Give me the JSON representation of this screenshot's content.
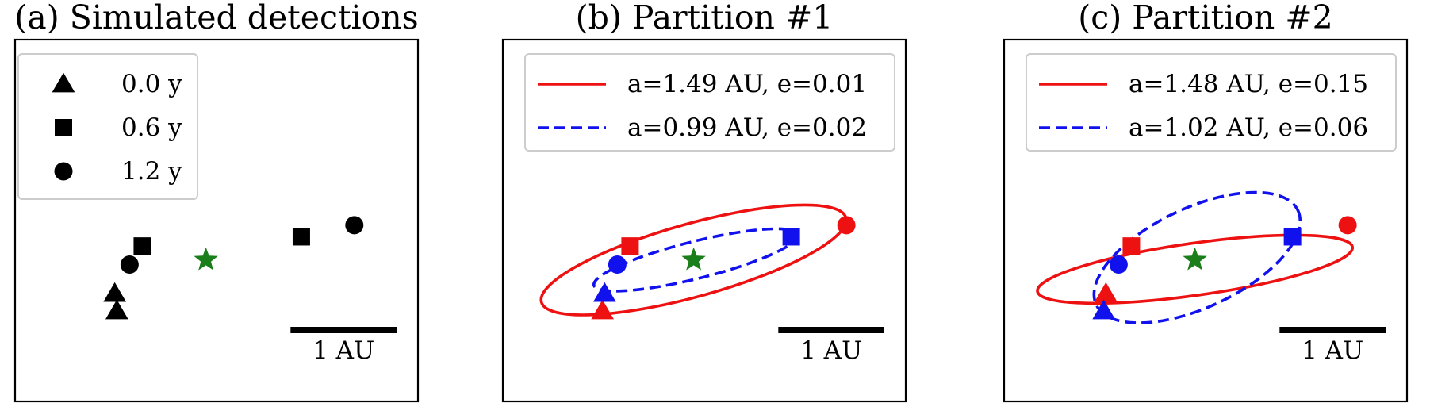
{
  "chart_data": [
    {
      "type": "scatter",
      "title": "(a) Simulated detections",
      "legend": {
        "placement": "top-left",
        "entries": [
          {
            "marker": "triangle",
            "label": "0.0 y"
          },
          {
            "marker": "square",
            "label": "0.6 y"
          },
          {
            "marker": "circle",
            "label": "1.2 y"
          }
        ]
      },
      "scalebar": {
        "label": "1 AU",
        "length": 1.0
      },
      "star": {
        "x": 0.0,
        "y": 0.0,
        "color": "#1a7f1a"
      },
      "series": [
        {
          "color": "#000000",
          "points": [
            {
              "x": -0.86,
              "y": -0.29,
              "marker": "triangle"
            },
            {
              "x": -0.6,
              "y": 0.12,
              "marker": "square"
            },
            {
              "x": -0.72,
              "y": -0.04,
              "marker": "circle"
            },
            {
              "x": -0.84,
              "y": -0.44,
              "marker": "triangle"
            },
            {
              "x": 0.9,
              "y": 0.2,
              "marker": "square"
            },
            {
              "x": 1.4,
              "y": 0.3,
              "marker": "circle"
            }
          ]
        }
      ],
      "xlim": [
        -1.8,
        2.0
      ],
      "ylim": [
        -1.22,
        1.9
      ],
      "grid": false
    },
    {
      "type": "scatter",
      "title": "(b) Partition #1",
      "legend": {
        "placement": "top-center",
        "entries": [
          {
            "style": "solid",
            "color": "#ee1111",
            "label": "a=1.49 AU, e=0.01"
          },
          {
            "style": "dashed",
            "color": "#1111ee",
            "label": "a=0.99 AU, e=0.02"
          }
        ]
      },
      "scalebar": {
        "label": "1 AU",
        "length": 1.0
      },
      "star": {
        "x": 0.0,
        "y": 0.0,
        "color": "#1a7f1a"
      },
      "orbits": [
        {
          "color": "#ee1111",
          "style": "solid",
          "cx": 0.0,
          "cy": 0.0,
          "rx": 1.49,
          "ry": 0.315,
          "tilt_deg": 15.5
        },
        {
          "color": "#1111ee",
          "style": "dashed",
          "cx": 0.02,
          "cy": 0.0,
          "rx": 0.99,
          "ry": 0.16,
          "tilt_deg": 14.0
        }
      ],
      "series": [
        {
          "color": "#ee1111",
          "points": [
            {
              "x": -0.86,
              "y": -0.44,
              "marker": "triangle"
            },
            {
              "x": -0.6,
              "y": 0.12,
              "marker": "square"
            },
            {
              "x": 1.44,
              "y": 0.3,
              "marker": "circle"
            }
          ]
        },
        {
          "color": "#1111ee",
          "points": [
            {
              "x": -0.84,
              "y": -0.29,
              "marker": "triangle"
            },
            {
              "x": 0.92,
              "y": 0.2,
              "marker": "square"
            },
            {
              "x": -0.72,
              "y": -0.04,
              "marker": "circle"
            }
          ]
        }
      ],
      "xlim": [
        -1.8,
        2.0
      ],
      "ylim": [
        -1.22,
        1.9
      ],
      "grid": false
    },
    {
      "type": "scatter",
      "title": "(c) Partition #2",
      "legend": {
        "placement": "top-center",
        "entries": [
          {
            "style": "solid",
            "color": "#ee1111",
            "label": "a=1.48 AU, e=0.15"
          },
          {
            "style": "dashed",
            "color": "#1111ee",
            "label": "a=1.02 AU, e=0.06"
          }
        ]
      },
      "scalebar": {
        "label": "1 AU",
        "length": 1.0
      },
      "star": {
        "x": 0.0,
        "y": 0.0,
        "color": "#1a7f1a"
      },
      "orbits": [
        {
          "color": "#ee1111",
          "style": "solid",
          "cx": 0.0,
          "cy": -0.08,
          "rx": 1.5,
          "ry": 0.225,
          "tilt_deg": 8.0
        },
        {
          "color": "#1111ee",
          "style": "dashed",
          "cx": 0.02,
          "cy": 0.02,
          "rx": 1.05,
          "ry": 0.43,
          "tilt_deg": 25.0
        }
      ],
      "series": [
        {
          "color": "#ee1111",
          "points": [
            {
              "x": -0.84,
              "y": -0.29,
              "marker": "triangle"
            },
            {
              "x": -0.6,
              "y": 0.12,
              "marker": "square"
            },
            {
              "x": 1.44,
              "y": 0.3,
              "marker": "circle"
            }
          ]
        },
        {
          "color": "#1111ee",
          "points": [
            {
              "x": -0.86,
              "y": -0.44,
              "marker": "triangle"
            },
            {
              "x": 0.92,
              "y": 0.2,
              "marker": "square"
            },
            {
              "x": -0.72,
              "y": -0.04,
              "marker": "circle"
            }
          ]
        }
      ],
      "xlim": [
        -1.8,
        2.0
      ],
      "ylim": [
        -1.22,
        1.9
      ],
      "grid": false
    }
  ]
}
